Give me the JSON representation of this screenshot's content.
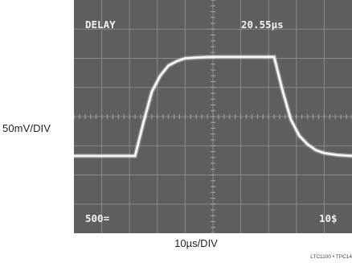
{
  "chart_data": {
    "type": "line",
    "title": "",
    "ylabel": "50mV/DIV",
    "xlabel": "10µs/DIV",
    "grid": true,
    "divisions": {
      "x": 10,
      "y": 8
    },
    "xlim": [
      0,
      10
    ],
    "ylim": [
      0,
      8
    ],
    "series": [
      {
        "x": [
          0,
          0.5,
          1,
          1.5,
          2,
          2.2,
          2.5,
          2.8,
          3.1,
          3.4,
          3.7,
          4.0,
          4.5,
          5.0,
          5.5,
          6.0,
          6.5,
          7.2,
          7.5,
          7.8,
          8.1,
          8.4,
          8.7,
          9.0,
          9.5,
          10
        ],
        "values": [
          2.65,
          2.65,
          2.65,
          2.65,
          2.65,
          2.65,
          3.8,
          4.85,
          5.4,
          5.75,
          5.9,
          6.0,
          6.03,
          6.05,
          6.05,
          6.05,
          6.05,
          6.05,
          4.9,
          3.9,
          3.35,
          3.05,
          2.85,
          2.75,
          2.68,
          2.65
        ]
      }
    ]
  },
  "screen": {
    "top_left": "DELAY",
    "top_right": "20.55µs",
    "bottom_left": "500=",
    "bottom_right": "10$"
  },
  "figure_note": "LTC1100 • TPC14"
}
